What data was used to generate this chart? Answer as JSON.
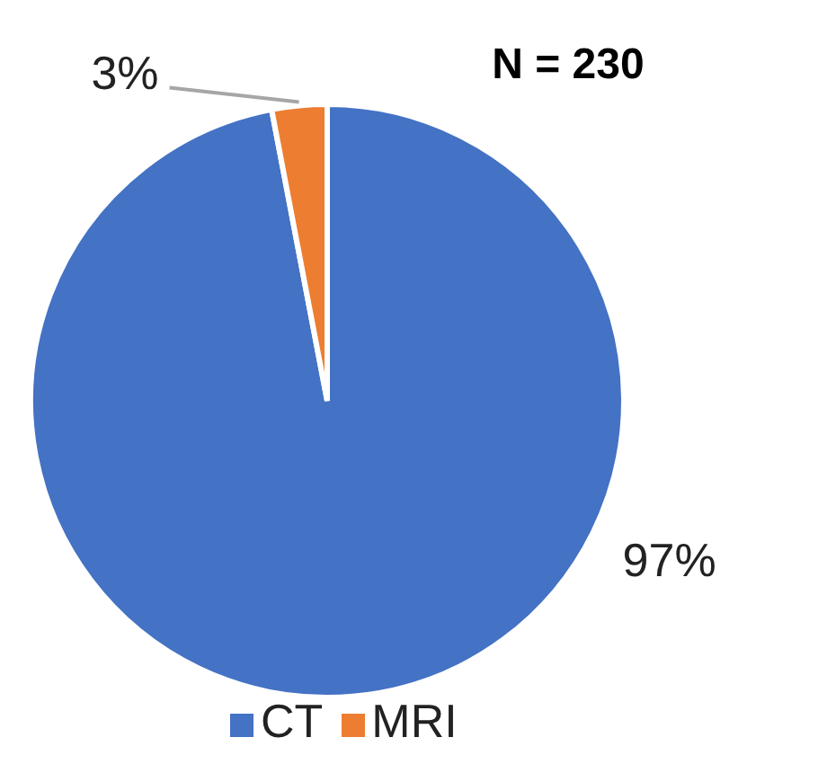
{
  "chart_data": {
    "type": "pie",
    "title": "N = 230",
    "categories": [
      "CT",
      "MRI"
    ],
    "values": [
      97,
      3
    ],
    "value_labels": [
      "97%",
      "3%"
    ],
    "colors": [
      "#4472c4",
      "#ed7d31"
    ],
    "legend": "bottom"
  }
}
